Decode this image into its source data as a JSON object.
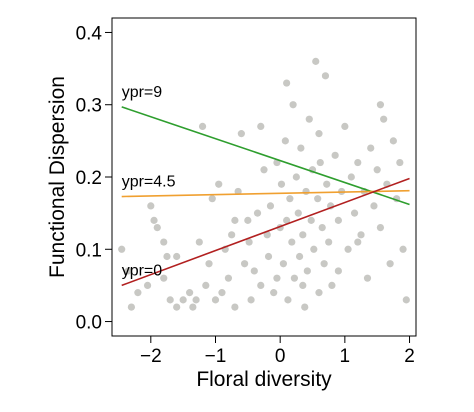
{
  "chart_data": {
    "type": "scatter",
    "title": "",
    "xlabel": "Floral diversity",
    "ylabel": "Functional Dispersion",
    "xlim": [
      -2.6,
      2.1
    ],
    "ylim": [
      -0.02,
      0.42
    ],
    "x_ticks": [
      -2,
      -1,
      0,
      1,
      2
    ],
    "x_tick_labels": [
      "−2",
      "−1",
      "0",
      "1",
      "2"
    ],
    "y_ticks": [
      0.0,
      0.1,
      0.2,
      0.3,
      0.4
    ],
    "y_tick_labels": [
      "0.0",
      "0.1",
      "0.2",
      "0.3",
      "0.4"
    ],
    "grid": false,
    "points": {
      "color": "#c8c8c4",
      "values": [
        [
          -2.45,
          0.1
        ],
        [
          -2.3,
          0.02
        ],
        [
          -2.2,
          0.04
        ],
        [
          -2.05,
          0.05
        ],
        [
          -2.0,
          0.16
        ],
        [
          -1.95,
          0.14
        ],
        [
          -1.9,
          0.13
        ],
        [
          -1.8,
          0.06
        ],
        [
          -1.75,
          0.09
        ],
        [
          -1.7,
          0.03
        ],
        [
          -1.6,
          0.02
        ],
        [
          -1.5,
          0.03
        ],
        [
          -1.4,
          0.04
        ],
        [
          -1.35,
          0.02
        ],
        [
          -1.3,
          0.03
        ],
        [
          -1.25,
          0.11
        ],
        [
          -1.2,
          0.27
        ],
        [
          -1.15,
          0.05
        ],
        [
          -1.1,
          0.08
        ],
        [
          -1.05,
          0.17
        ],
        [
          -1.0,
          0.03
        ],
        [
          -0.95,
          0.19
        ],
        [
          -0.9,
          0.04
        ],
        [
          -0.85,
          0.1
        ],
        [
          -0.8,
          0.06
        ],
        [
          -0.75,
          0.12
        ],
        [
          -0.7,
          0.02
        ],
        [
          -0.65,
          0.18
        ],
        [
          -0.6,
          0.26
        ],
        [
          -0.55,
          0.08
        ],
        [
          -0.5,
          0.14
        ],
        [
          -0.48,
          0.11
        ],
        [
          -0.45,
          0.03
        ],
        [
          -0.4,
          0.07
        ],
        [
          -0.35,
          0.15
        ],
        [
          -0.3,
          0.05
        ],
        [
          -0.25,
          0.21
        ],
        [
          -0.2,
          0.12
        ],
        [
          -0.18,
          0.09
        ],
        [
          -0.15,
          0.16
        ],
        [
          -0.1,
          0.04
        ],
        [
          -0.05,
          0.22
        ],
        [
          0.0,
          0.13
        ],
        [
          0.02,
          0.19
        ],
        [
          0.05,
          0.08
        ],
        [
          0.08,
          0.25
        ],
        [
          0.1,
          0.14
        ],
        [
          0.12,
          0.03
        ],
        [
          0.15,
          0.17
        ],
        [
          0.18,
          0.11
        ],
        [
          0.2,
          0.3
        ],
        [
          0.22,
          0.06
        ],
        [
          0.25,
          0.2
        ],
        [
          0.28,
          0.15
        ],
        [
          0.3,
          0.09
        ],
        [
          0.32,
          0.24
        ],
        [
          0.35,
          0.12
        ],
        [
          0.38,
          0.02
        ],
        [
          0.4,
          0.18
        ],
        [
          0.42,
          0.07
        ],
        [
          0.45,
          0.28
        ],
        [
          0.48,
          0.14
        ],
        [
          0.5,
          0.21
        ],
        [
          0.52,
          0.1
        ],
        [
          0.55,
          0.36
        ],
        [
          0.58,
          0.17
        ],
        [
          0.6,
          0.04
        ],
        [
          0.62,
          0.22
        ],
        [
          0.65,
          0.13
        ],
        [
          0.68,
          0.08
        ],
        [
          0.7,
          0.34
        ],
        [
          0.72,
          0.19
        ],
        [
          0.75,
          0.11
        ],
        [
          0.78,
          0.16
        ],
        [
          0.8,
          0.05
        ],
        [
          0.85,
          0.23
        ],
        [
          0.9,
          0.14
        ],
        [
          0.95,
          0.18
        ],
        [
          1.0,
          0.27
        ],
        [
          1.05,
          0.1
        ],
        [
          1.1,
          0.2
        ],
        [
          1.15,
          0.15
        ],
        [
          1.2,
          0.22
        ],
        [
          1.25,
          0.12
        ],
        [
          1.3,
          0.18
        ],
        [
          1.35,
          0.06
        ],
        [
          1.4,
          0.24
        ],
        [
          1.45,
          0.16
        ],
        [
          1.5,
          0.21
        ],
        [
          1.55,
          0.13
        ],
        [
          1.6,
          0.28
        ],
        [
          1.65,
          0.19
        ],
        [
          1.7,
          0.08
        ],
        [
          1.75,
          0.25
        ],
        [
          1.8,
          0.17
        ],
        [
          1.85,
          0.22
        ],
        [
          1.9,
          0.1
        ],
        [
          1.95,
          0.03
        ],
        [
          -0.3,
          0.27
        ],
        [
          0.1,
          0.33
        ],
        [
          -1.6,
          0.09
        ],
        [
          -0.7,
          0.14
        ],
        [
          0.35,
          0.05
        ],
        [
          1.2,
          0.11
        ],
        [
          -2.35,
          0.07
        ],
        [
          0.9,
          0.07
        ],
        [
          -1.8,
          0.11
        ],
        [
          0.6,
          0.26
        ],
        [
          1.55,
          0.3
        ],
        [
          -0.05,
          0.06
        ]
      ]
    },
    "series": [
      {
        "name": "ypr=9",
        "type": "line",
        "color": "#2e9e2e",
        "x": [
          -2.45,
          2.0
        ],
        "y": [
          0.297,
          0.162
        ]
      },
      {
        "name": "ypr=4.5",
        "type": "line",
        "color": "#f0a030",
        "x": [
          -2.45,
          2.0
        ],
        "y": [
          0.173,
          0.181
        ]
      },
      {
        "name": "ypr=0",
        "type": "line",
        "color": "#b22020",
        "x": [
          -2.45,
          2.0
        ],
        "y": [
          0.05,
          0.198
        ]
      }
    ]
  }
}
